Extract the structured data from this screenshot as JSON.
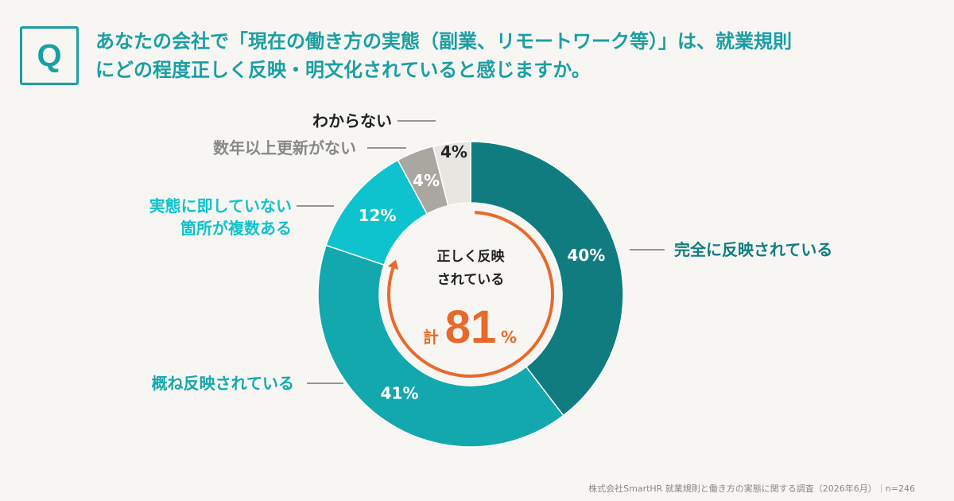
{
  "header": {
    "q_mark": "Q",
    "question_line1": "あなたの会社で「現在の働き方の実態（副業、リモートワーク等）」は、就業規則",
    "question_line2": "にどの程度正しく反映・明文化されていると感じますか。"
  },
  "center": {
    "line1": "正しく反映",
    "line2": "されている",
    "prefix": "計",
    "value": "81",
    "unit": "%"
  },
  "footer": "株式会社SmartHR 就業規則と働き方の実態に関する調査（2026年6月）｜n=246",
  "colors": {
    "accent": "#1a9fa3",
    "orange": "#e8692b",
    "slice_full": "#117c80",
    "slice_mostly": "#13a8ad",
    "slice_mismatch": "#0ec3cd",
    "slice_outdated": "#a9a7a0",
    "slice_unknown": "#e8e6e1"
  },
  "chart_data": {
    "type": "pie",
    "variant": "donut",
    "slices": [
      {
        "label": "完全に反映されている",
        "value": 40,
        "value_label": "40%",
        "color": "#117c80",
        "label_color": "#117c80",
        "label_lines": [
          "完全に反映されている"
        ]
      },
      {
        "label": "概ね反映されている",
        "value": 41,
        "value_label": "41%",
        "color": "#13a8ad",
        "label_color": "#13a8ad",
        "label_lines": [
          "概ね反映されている"
        ]
      },
      {
        "label": "実態に即していない箇所が複数ある",
        "value": 12,
        "value_label": "12%",
        "color": "#0ec3cd",
        "label_color": "#0ec3cd",
        "label_lines": [
          "実態に即していない",
          "箇所が複数ある"
        ]
      },
      {
        "label": "数年以上更新がない",
        "value": 4,
        "value_label": "4%",
        "color": "#a9a7a0",
        "label_color": "#888888",
        "label_lines": [
          "数年以上更新がない"
        ]
      },
      {
        "label": "わからない",
        "value": 4,
        "value_label": "4%",
        "color": "#e8e6e1",
        "label_color": "#222222",
        "label_lines": [
          "わからない"
        ]
      }
    ]
  }
}
